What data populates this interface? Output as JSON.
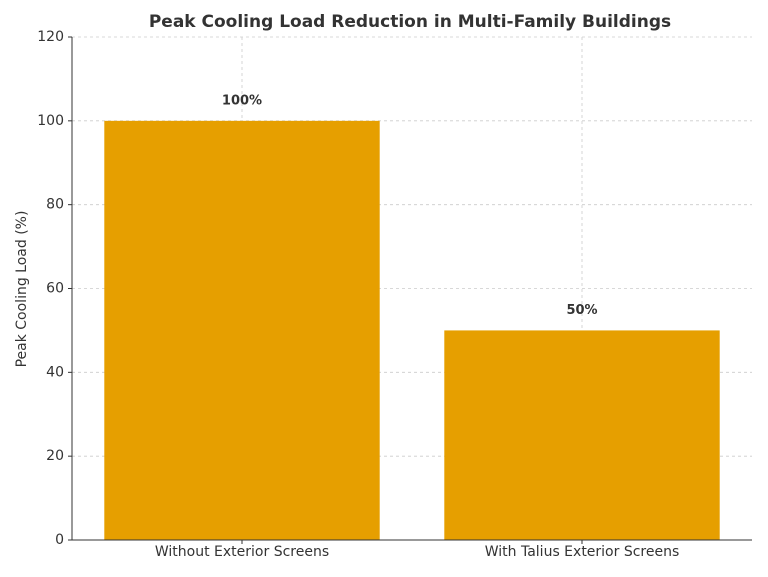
{
  "chart_data": {
    "type": "bar",
    "title": "Peak Cooling Load Reduction in Multi-Family Buildings",
    "y_label": "Peak Cooling Load (%)",
    "categories": [
      "Without Exterior Screens",
      "With Talius Exterior Screens"
    ],
    "values": [
      100,
      50
    ],
    "value_labels": [
      "100%",
      "50%"
    ],
    "color": "#e69f00",
    "ylim": [
      0,
      120
    ],
    "yticks": [
      0,
      20,
      40,
      60,
      80,
      100,
      120
    ],
    "grid": true
  }
}
